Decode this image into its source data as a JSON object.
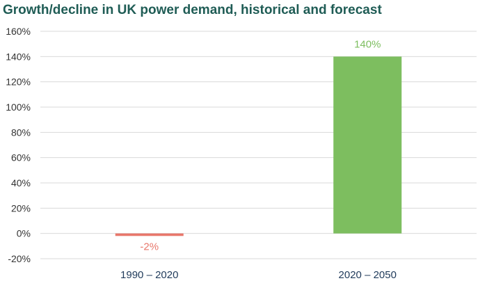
{
  "chart_data": {
    "type": "bar",
    "title": "Growth/decline in UK power demand, historical and forecast",
    "categories": [
      "1990 – 2020",
      "2020 – 2050"
    ],
    "values": [
      -2,
      140
    ],
    "data_labels": [
      "-2%",
      "140%"
    ],
    "bar_colors": [
      "#e8776b",
      "#7dbe5f"
    ],
    "ylim": [
      -20,
      160
    ],
    "ytick_values": [
      -20,
      0,
      20,
      40,
      60,
      80,
      100,
      120,
      140,
      160
    ],
    "ytick_labels": [
      "-20%",
      "0%",
      "20%",
      "40%",
      "60%",
      "80%",
      "100%",
      "120%",
      "140%",
      "160%"
    ],
    "xlabel": "",
    "ylabel": "",
    "grid": true,
    "legend": "none"
  },
  "colors": {
    "title": "#1f5c55",
    "grid": "#d9d9d9",
    "axis_text": "#333333",
    "category_text": "#1f3a5a"
  }
}
